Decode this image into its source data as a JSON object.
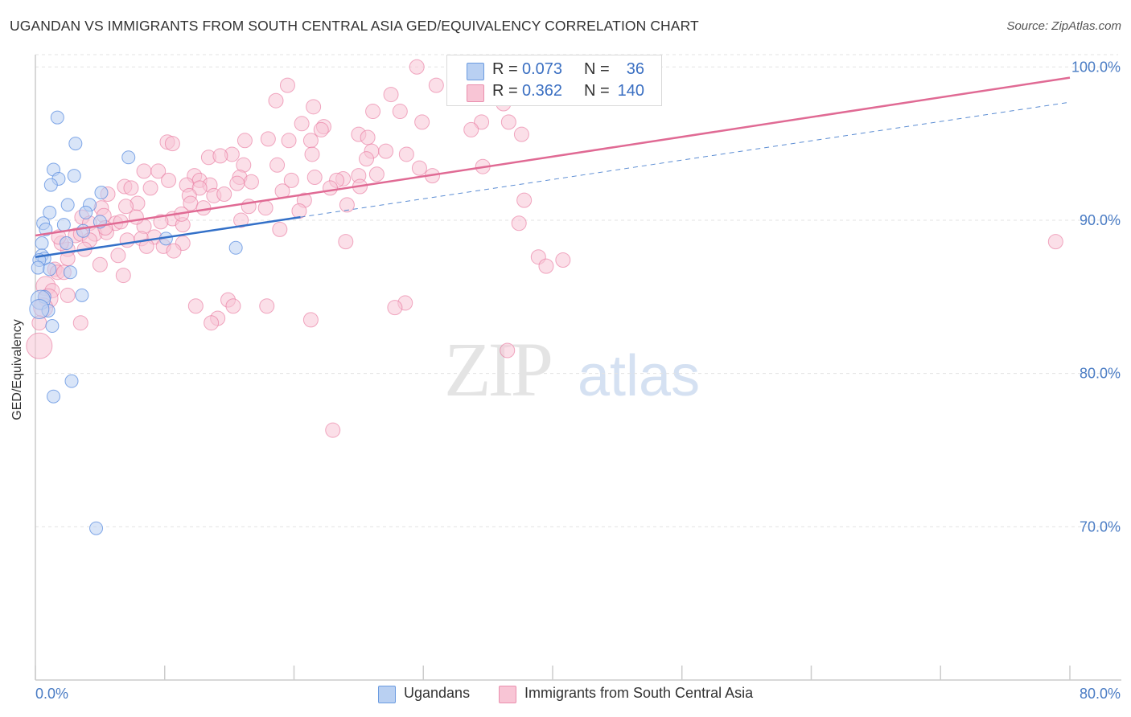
{
  "title": "UGANDAN VS IMMIGRANTS FROM SOUTH CENTRAL ASIA GED/EQUIVALENCY CORRELATION CHART",
  "source": "Source: ZipAtlas.com",
  "watermark": {
    "zip": "ZIP",
    "atlas": "atlas"
  },
  "legend": {
    "r_label": "R =",
    "n_label": "N =",
    "rows": [
      {
        "r": "0.073",
        "n": "36",
        "color": "#b9d0f2",
        "border": "#6b9be0"
      },
      {
        "r": "0.362",
        "n": "140",
        "color": "#f8c5d5",
        "border": "#ea8fae"
      }
    ]
  },
  "bottom_legend": [
    "Ugandans",
    "Immigrants from South Central Asia"
  ],
  "colors": {
    "blue": "#5b8ee0",
    "blue_fill": "#b9d0f2",
    "pink": "#e8739b",
    "pink_fill": "#f8c5d5",
    "trend_blue": "#3370c8",
    "trend_pink": "#e06a94",
    "tick": "#4a7cc4"
  },
  "chart_data": {
    "type": "scatter",
    "title": "UGANDAN VS IMMIGRANTS FROM SOUTH CENTRAL ASIA GED/EQUIVALENCY CORRELATION CHART",
    "xlabel": "",
    "ylabel": "GED/Equivalency",
    "xlim": [
      0,
      80
    ],
    "ylim": [
      60,
      100.8
    ],
    "x_ticks": [
      "0.0%",
      "80.0%"
    ],
    "y_ticks": [
      {
        "value": 100,
        "label": "100.0%"
      },
      {
        "value": 90,
        "label": "90.0%"
      },
      {
        "value": 80,
        "label": "80.0%"
      },
      {
        "value": 70,
        "label": "70.0%"
      }
    ],
    "grid": true,
    "legend_position": "top-center",
    "series": [
      {
        "name": "Ugandans",
        "r": 0.073,
        "n": 36,
        "trend": {
          "x": [
            0,
            20.5
          ],
          "y": [
            87.6,
            90.2
          ],
          "dash_x": [
            20.5,
            80
          ],
          "dash_y": [
            90.2,
            97.7
          ]
        },
        "points": [
          [
            1.7,
            96.7
          ],
          [
            3.1,
            95.0
          ],
          [
            1.4,
            93.3
          ],
          [
            3.0,
            92.9
          ],
          [
            1.8,
            92.7
          ],
          [
            1.2,
            92.3
          ],
          [
            7.2,
            94.1
          ],
          [
            5.1,
            91.8
          ],
          [
            2.5,
            91.0
          ],
          [
            4.2,
            91.0
          ],
          [
            1.1,
            90.5
          ],
          [
            0.6,
            89.8
          ],
          [
            2.2,
            89.7
          ],
          [
            5.0,
            89.9
          ],
          [
            0.8,
            89.4
          ],
          [
            3.7,
            89.3
          ],
          [
            3.9,
            90.5
          ],
          [
            2.4,
            88.5
          ],
          [
            0.5,
            88.5
          ],
          [
            10.1,
            88.8
          ],
          [
            15.5,
            88.2
          ],
          [
            0.5,
            87.7
          ],
          [
            0.7,
            87.5
          ],
          [
            0.3,
            87.4
          ],
          [
            0.2,
            86.9
          ],
          [
            1.1,
            86.8
          ],
          [
            2.7,
            86.6
          ],
          [
            0.7,
            85.0
          ],
          [
            3.6,
            85.1
          ],
          [
            0.4,
            84.8
          ],
          [
            1.0,
            84.1
          ],
          [
            0.3,
            84.2
          ],
          [
            1.3,
            83.1
          ],
          [
            2.8,
            79.5
          ],
          [
            1.4,
            78.5
          ],
          [
            4.7,
            69.9
          ]
        ]
      },
      {
        "name": "Immigrants from South Central Asia",
        "r": 0.362,
        "n": 140,
        "trend": {
          "x": [
            0,
            80
          ],
          "y": [
            89.0,
            99.3
          ]
        },
        "points": [
          [
            29.5,
            100.0
          ],
          [
            31.0,
            98.8
          ],
          [
            19.5,
            98.8
          ],
          [
            27.5,
            98.2
          ],
          [
            18.6,
            97.8
          ],
          [
            33.8,
            98.0
          ],
          [
            36.2,
            97.6
          ],
          [
            21.5,
            97.4
          ],
          [
            26.1,
            97.1
          ],
          [
            28.2,
            97.1
          ],
          [
            20.6,
            96.3
          ],
          [
            22.3,
            96.1
          ],
          [
            29.9,
            96.4
          ],
          [
            34.5,
            96.4
          ],
          [
            36.6,
            96.4
          ],
          [
            22.1,
            95.9
          ],
          [
            33.7,
            95.9
          ],
          [
            25.0,
            95.6
          ],
          [
            18.0,
            95.3
          ],
          [
            16.2,
            95.2
          ],
          [
            19.6,
            95.2
          ],
          [
            21.3,
            95.2
          ],
          [
            25.7,
            95.4
          ],
          [
            37.6,
            95.6
          ],
          [
            10.2,
            95.1
          ],
          [
            10.6,
            95.0
          ],
          [
            26.0,
            94.5
          ],
          [
            28.7,
            94.3
          ],
          [
            15.2,
            94.3
          ],
          [
            13.4,
            94.1
          ],
          [
            14.3,
            94.2
          ],
          [
            21.4,
            94.3
          ],
          [
            25.6,
            94.0
          ],
          [
            18.7,
            93.6
          ],
          [
            16.1,
            93.6
          ],
          [
            34.6,
            93.5
          ],
          [
            29.7,
            93.4
          ],
          [
            8.4,
            93.2
          ],
          [
            9.5,
            93.2
          ],
          [
            12.3,
            92.9
          ],
          [
            15.8,
            92.8
          ],
          [
            25.0,
            92.9
          ],
          [
            30.7,
            92.9
          ],
          [
            23.8,
            92.7
          ],
          [
            16.7,
            92.5
          ],
          [
            12.7,
            92.6
          ],
          [
            10.3,
            92.6
          ],
          [
            19.8,
            92.6
          ],
          [
            23.3,
            92.6
          ],
          [
            6.9,
            92.2
          ],
          [
            7.4,
            92.1
          ],
          [
            8.9,
            92.1
          ],
          [
            11.7,
            92.3
          ],
          [
            13.5,
            92.3
          ],
          [
            15.6,
            92.4
          ],
          [
            12.7,
            92.1
          ],
          [
            22.8,
            92.1
          ],
          [
            25.1,
            92.2
          ],
          [
            5.6,
            91.7
          ],
          [
            11.9,
            91.6
          ],
          [
            13.8,
            91.6
          ],
          [
            7.9,
            91.1
          ],
          [
            20.8,
            91.3
          ],
          [
            37.8,
            91.3
          ],
          [
            5.1,
            90.8
          ],
          [
            7.0,
            90.9
          ],
          [
            12.0,
            91.1
          ],
          [
            13.0,
            90.8
          ],
          [
            16.5,
            90.9
          ],
          [
            17.8,
            90.8
          ],
          [
            24.1,
            91.0
          ],
          [
            20.4,
            90.6
          ],
          [
            3.6,
            90.2
          ],
          [
            5.3,
            90.3
          ],
          [
            10.6,
            90.1
          ],
          [
            15.9,
            90.0
          ],
          [
            37.4,
            89.8
          ],
          [
            4.2,
            89.8
          ],
          [
            6.2,
            89.8
          ],
          [
            6.6,
            89.9
          ],
          [
            8.4,
            89.6
          ],
          [
            11.4,
            89.7
          ],
          [
            18.9,
            89.4
          ],
          [
            3.1,
            89.0
          ],
          [
            3.5,
            89.1
          ],
          [
            4.6,
            89.1
          ],
          [
            5.5,
            89.2
          ],
          [
            7.1,
            88.7
          ],
          [
            8.2,
            88.8
          ],
          [
            9.2,
            88.9
          ],
          [
            11.4,
            88.5
          ],
          [
            2.5,
            88.1
          ],
          [
            2.0,
            88.5
          ],
          [
            4.2,
            88.7
          ],
          [
            8.6,
            88.3
          ],
          [
            9.9,
            88.3
          ],
          [
            10.7,
            88.0
          ],
          [
            24.0,
            88.6
          ],
          [
            78.9,
            88.6
          ],
          [
            6.4,
            87.7
          ],
          [
            38.9,
            87.6
          ],
          [
            40.8,
            87.4
          ],
          [
            5.0,
            87.1
          ],
          [
            39.5,
            87.0
          ],
          [
            2.5,
            87.5
          ],
          [
            1.5,
            86.8
          ],
          [
            1.7,
            86.6
          ],
          [
            6.8,
            86.4
          ],
          [
            2.2,
            86.6
          ],
          [
            0.8,
            85.7
          ],
          [
            1.3,
            85.4
          ],
          [
            2.5,
            85.1
          ],
          [
            14.9,
            84.8
          ],
          [
            12.4,
            84.4
          ],
          [
            17.9,
            84.4
          ],
          [
            15.3,
            84.4
          ],
          [
            28.6,
            84.6
          ],
          [
            27.8,
            84.3
          ],
          [
            1.0,
            84.9
          ],
          [
            0.6,
            84.3
          ],
          [
            0.3,
            83.3
          ],
          [
            3.5,
            83.3
          ],
          [
            14.1,
            83.6
          ],
          [
            13.6,
            83.3
          ],
          [
            21.3,
            83.5
          ],
          [
            36.5,
            81.5
          ],
          [
            0.3,
            81.8
          ],
          [
            23.0,
            76.3
          ],
          [
            1.8,
            88.9
          ],
          [
            3.8,
            88.1
          ],
          [
            5.4,
            89.5
          ],
          [
            7.8,
            90.2
          ],
          [
            9.7,
            89.9
          ],
          [
            11.3,
            90.4
          ],
          [
            14.6,
            91.7
          ],
          [
            19.1,
            91.9
          ],
          [
            21.6,
            92.8
          ],
          [
            26.4,
            93.0
          ],
          [
            27.1,
            94.5
          ]
        ]
      }
    ]
  }
}
